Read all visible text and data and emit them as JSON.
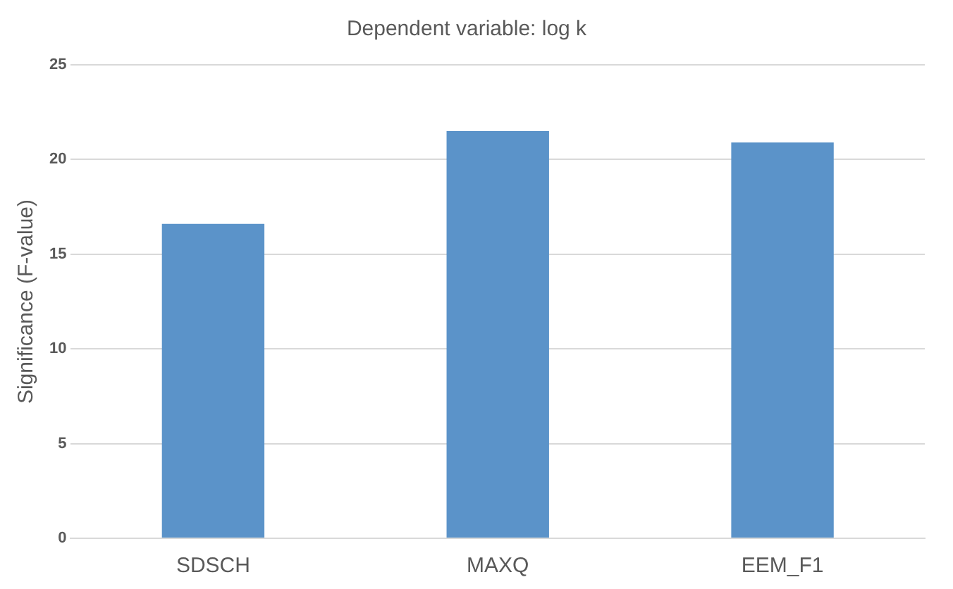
{
  "chart_data": {
    "type": "bar",
    "title": "Dependent variable: log k",
    "ylabel": "Significance (F-value)",
    "categories": [
      "SDSCH",
      "MAXQ",
      "EEM_F1"
    ],
    "values": [
      16.6,
      21.5,
      20.9
    ],
    "color": "#5b93c9",
    "ylim": [
      0,
      25
    ],
    "yticks": [
      0,
      5,
      10,
      15,
      20,
      25
    ],
    "grid": "y",
    "legend": false
  }
}
